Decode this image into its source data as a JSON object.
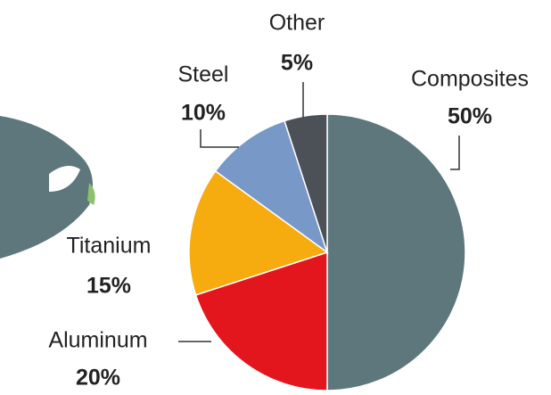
{
  "chart_data": {
    "type": "pie",
    "categories": [
      "Composites",
      "Aluminum",
      "Titanium",
      "Steel",
      "Other"
    ],
    "values": [
      50,
      20,
      15,
      10,
      5
    ],
    "value_labels": [
      "50%",
      "20%",
      "15%",
      "10%",
      "5%"
    ],
    "colors": [
      "#5d777d",
      "#e3161d",
      "#f6ab0f",
      "#7898c8",
      "#4b5157"
    ]
  }
}
